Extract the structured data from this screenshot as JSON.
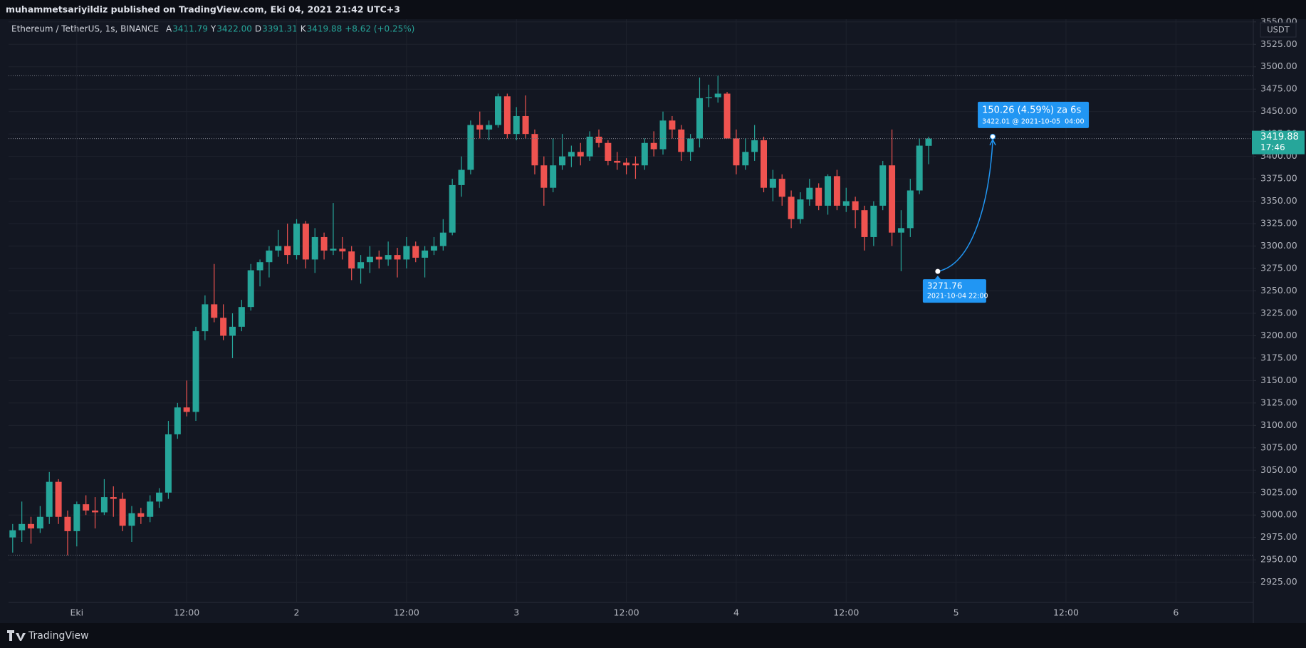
{
  "chart_data": {
    "type": "candlestick",
    "publisher_line": "muhammetsariyildiz published on TradingView.com, Eki 04, 2021 21:42 UTC+3",
    "symbol": "Ethereum / TetherUS, 1s, BINANCE",
    "ohlc": [
      {
        "label": "A",
        "value": "3411.79"
      },
      {
        "label": "Y",
        "value": "3422.00"
      },
      {
        "label": "D",
        "value": "3391.31"
      },
      {
        "label": "K",
        "value": "3419.88"
      }
    ],
    "change": "+8.62 (+0.25%)",
    "axis_unit": "USDT",
    "countdown": "17:46",
    "brand": "TradingView",
    "up_color": "#26a69a",
    "down_color": "#ef5350",
    "grid": true,
    "x": [
      -7,
      -6,
      -5,
      -4,
      -3,
      -2,
      -1,
      0,
      1,
      2,
      3,
      4,
      5,
      6,
      7,
      8,
      9,
      10,
      11,
      12,
      13,
      14,
      15,
      16,
      17,
      18,
      19,
      20,
      21,
      22,
      23,
      24,
      25,
      26,
      27,
      28,
      29,
      30,
      31,
      32,
      33,
      34,
      35,
      36,
      37,
      38,
      39,
      40,
      41,
      42,
      43,
      44,
      45,
      46,
      47,
      48,
      49,
      50,
      51,
      52,
      53,
      54,
      55,
      56,
      57,
      58,
      59,
      60,
      61,
      62,
      63,
      64,
      65,
      66,
      67,
      68,
      69,
      70,
      71,
      72,
      73,
      74,
      75,
      76,
      77,
      78,
      79,
      80,
      81,
      82,
      83,
      84,
      85,
      86,
      87,
      88,
      89,
      90,
      91,
      92,
      93
    ],
    "open": [
      2975,
      2983,
      2990,
      2985,
      2998,
      3037,
      2998,
      2982,
      3012,
      3005,
      3003,
      3020,
      3018,
      2988,
      3002,
      2998,
      3015,
      3025,
      3090,
      3120,
      3115,
      3205,
      3235,
      3220,
      3200,
      3210,
      3232,
      3273,
      3282,
      3295,
      3300,
      3290,
      3325,
      3285,
      3310,
      3295,
      3297,
      3294,
      3275,
      3282,
      3288,
      3285,
      3290,
      3285,
      3300,
      3287,
      3295,
      3300,
      3315,
      3368,
      3385,
      3435,
      3430,
      3435,
      3467,
      3425,
      3445,
      3425,
      3390,
      3365,
      3390,
      3400,
      3405,
      3400,
      3422,
      3415,
      3395,
      3393,
      3392,
      3390,
      3415,
      3408,
      3440,
      3430,
      3405,
      3420,
      3465,
      3466,
      3470,
      3420,
      3390,
      3405,
      3418,
      3365,
      3375,
      3355,
      3330,
      3352,
      3365,
      3345,
      3378,
      3345,
      3350,
      3340,
      3310,
      3345,
      3390,
      3315,
      3320,
      3362,
      3411.79
    ],
    "high": [
      2990,
      3015,
      2998,
      3010,
      3048,
      3040,
      3005,
      3015,
      3022,
      3020,
      3040,
      3032,
      3025,
      3010,
      3008,
      3022,
      3030,
      3105,
      3125,
      3150,
      3210,
      3245,
      3280,
      3235,
      3225,
      3240,
      3280,
      3285,
      3300,
      3318,
      3325,
      3330,
      3328,
      3320,
      3315,
      3348,
      3310,
      3300,
      3290,
      3300,
      3295,
      3305,
      3298,
      3310,
      3305,
      3300,
      3310,
      3330,
      3375,
      3400,
      3440,
      3450,
      3440,
      3470,
      3470,
      3455,
      3468,
      3430,
      3400,
      3420,
      3425,
      3412,
      3415,
      3428,
      3430,
      3418,
      3405,
      3398,
      3400,
      3420,
      3428,
      3450,
      3445,
      3435,
      3425,
      3488,
      3480,
      3490,
      3472,
      3430,
      3420,
      3435,
      3422,
      3385,
      3380,
      3362,
      3360,
      3375,
      3370,
      3380,
      3385,
      3365,
      3355,
      3345,
      3350,
      3395,
      3430,
      3340,
      3375,
      3420,
      3422
    ],
    "low": [
      2958,
      2970,
      2968,
      2980,
      2990,
      2990,
      2955,
      2965,
      3000,
      2985,
      3000,
      2998,
      2982,
      2970,
      2990,
      2992,
      3008,
      3018,
      3085,
      3110,
      3105,
      3195,
      3215,
      3195,
      3175,
      3205,
      3228,
      3255,
      3265,
      3288,
      3280,
      3285,
      3275,
      3270,
      3285,
      3290,
      3285,
      3262,
      3258,
      3270,
      3275,
      3278,
      3265,
      3275,
      3282,
      3265,
      3290,
      3295,
      3312,
      3355,
      3380,
      3420,
      3418,
      3432,
      3420,
      3418,
      3420,
      3380,
      3345,
      3360,
      3385,
      3388,
      3390,
      3395,
      3410,
      3390,
      3385,
      3380,
      3375,
      3385,
      3400,
      3402,
      3420,
      3395,
      3395,
      3410,
      3455,
      3460,
      3420,
      3380,
      3385,
      3395,
      3360,
      3350,
      3345,
      3320,
      3325,
      3345,
      3340,
      3335,
      3340,
      3338,
      3320,
      3295,
      3300,
      3340,
      3300,
      3272,
      3310,
      3358,
      3391.31
    ],
    "close": [
      2983,
      2990,
      2985,
      2998,
      3037,
      2998,
      2982,
      3012,
      3005,
      3003,
      3020,
      3018,
      2988,
      3002,
      2998,
      3015,
      3025,
      3090,
      3120,
      3115,
      3205,
      3235,
      3220,
      3200,
      3210,
      3232,
      3273,
      3282,
      3295,
      3300,
      3290,
      3325,
      3285,
      3310,
      3295,
      3297,
      3294,
      3275,
      3282,
      3288,
      3285,
      3290,
      3285,
      3300,
      3287,
      3295,
      3300,
      3315,
      3368,
      3385,
      3435,
      3430,
      3435,
      3467,
      3425,
      3445,
      3425,
      3390,
      3365,
      3390,
      3400,
      3405,
      3400,
      3422,
      3415,
      3395,
      3393,
      3390,
      3390,
      3415,
      3408,
      3440,
      3430,
      3405,
      3420,
      3465,
      3466,
      3470,
      3420,
      3390,
      3405,
      3418,
      3365,
      3375,
      3355,
      3330,
      3352,
      3365,
      3345,
      3378,
      3345,
      3350,
      3340,
      3310,
      3345,
      3390,
      3315,
      3320,
      3362,
      3412,
      3419.88
    ],
    "xlim": [
      -7.45,
      128.45
    ],
    "xticks": [
      {
        "value": 0,
        "label": "Eki"
      },
      {
        "value": 12,
        "label": "12:00"
      },
      {
        "value": 24,
        "label": "2"
      },
      {
        "value": 36,
        "label": "12:00"
      },
      {
        "value": 48,
        "label": "3"
      },
      {
        "value": 60,
        "label": "12:00"
      },
      {
        "value": 72,
        "label": "4"
      },
      {
        "value": 84,
        "label": "12:00"
      },
      {
        "value": 96,
        "label": "5"
      },
      {
        "value": 108,
        "label": "12:00"
      },
      {
        "value": 120,
        "label": "6"
      }
    ],
    "ylim": [
      2902.5,
      3553
    ],
    "yticks": [
      {
        "value": 2925,
        "label": "2925.00"
      },
      {
        "value": 2950,
        "label": "2950.00"
      },
      {
        "value": 2975,
        "label": "2975.00"
      },
      {
        "value": 3000,
        "label": "3000.00"
      },
      {
        "value": 3025,
        "label": "3025.00"
      },
      {
        "value": 3050,
        "label": "3050.00"
      },
      {
        "value": 3075,
        "label": "3075.00"
      },
      {
        "value": 3100,
        "label": "3100.00"
      },
      {
        "value": 3125,
        "label": "3125.00"
      },
      {
        "value": 3150,
        "label": "3150.00"
      },
      {
        "value": 3175,
        "label": "3175.00"
      },
      {
        "value": 3200,
        "label": "3200.00"
      },
      {
        "value": 3225,
        "label": "3225.00"
      },
      {
        "value": 3250,
        "label": "3250.00"
      },
      {
        "value": 3275,
        "label": "3275.00"
      },
      {
        "value": 3300,
        "label": "3300.00"
      },
      {
        "value": 3325,
        "label": "3325.00"
      },
      {
        "value": 3350,
        "label": "3350.00"
      },
      {
        "value": 3375,
        "label": "3375.00"
      },
      {
        "value": 3400,
        "label": "3400.00"
      },
      {
        "value": 3425,
        "label": "3425.00"
      },
      {
        "value": 3450,
        "label": "3450.00"
      },
      {
        "value": 3475,
        "label": "3475.00"
      },
      {
        "value": 3500,
        "label": "3500.00"
      },
      {
        "value": 3525,
        "label": "3525.00"
      },
      {
        "value": 3550,
        "label": "3550.00"
      }
    ],
    "annotation": {
      "start": {
        "x": 94,
        "y": 3271.76,
        "date": "2021-10-04 22:00"
      },
      "end": {
        "x": 100,
        "y": 3422.01,
        "label": "150.26 (4.59%) za 6s",
        "detail": "3422.01 @ 2021-10-05  04:00"
      }
    }
  }
}
